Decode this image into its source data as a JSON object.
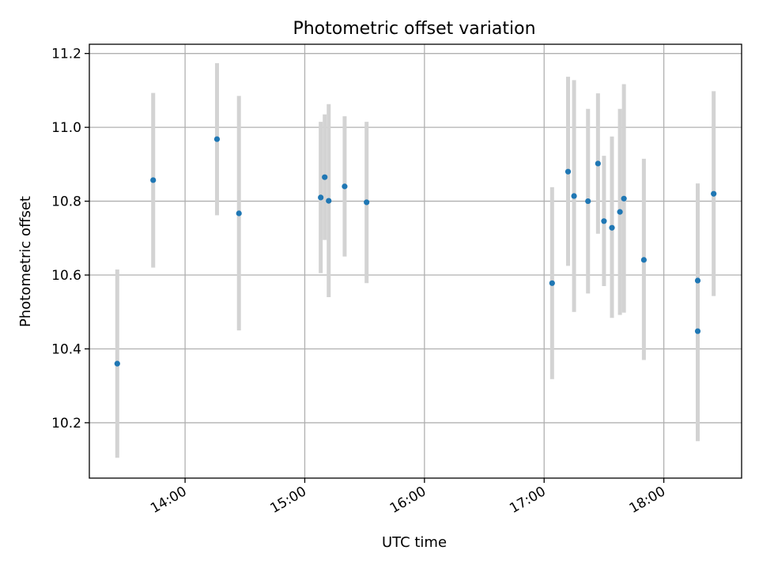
{
  "chart_data": {
    "type": "scatter",
    "title": "Photometric offset variation",
    "xlabel": "UTC time",
    "ylabel": "Photometric offset",
    "xlim": [
      "13:12",
      "18:39"
    ],
    "ylim": [
      10.05,
      11.225
    ],
    "x_ticks": [
      "14:00",
      "15:00",
      "16:00",
      "17:00",
      "18:00"
    ],
    "y_ticks": [
      10.2,
      10.4,
      10.6,
      10.8,
      11.0,
      11.2
    ],
    "y_tick_labels": [
      "10.2",
      "10.4",
      "10.6",
      "10.8",
      "11.0",
      "11.2"
    ],
    "grid": true,
    "colors": {
      "point": "#1f77b4",
      "errorbar": "#d3d3d3"
    },
    "series": [
      {
        "points": [
          {
            "x": "13:26",
            "y": 10.36,
            "ylow": 10.105,
            "yhigh": 10.615
          },
          {
            "x": "13:44",
            "y": 10.857,
            "ylow": 10.62,
            "yhigh": 11.093
          },
          {
            "x": "14:16",
            "y": 10.968,
            "ylow": 10.762,
            "yhigh": 11.174
          },
          {
            "x": "14:27",
            "y": 10.767,
            "ylow": 10.45,
            "yhigh": 11.085
          },
          {
            "x": "15:08",
            "y": 10.81,
            "ylow": 10.605,
            "yhigh": 11.015
          },
          {
            "x": "15:10",
            "y": 10.865,
            "ylow": 10.695,
            "yhigh": 11.035
          },
          {
            "x": "15:12",
            "y": 10.801,
            "ylow": 10.54,
            "yhigh": 11.063
          },
          {
            "x": "15:20",
            "y": 10.84,
            "ylow": 10.65,
            "yhigh": 11.03
          },
          {
            "x": "15:31",
            "y": 10.797,
            "ylow": 10.578,
            "yhigh": 11.015
          },
          {
            "x": "17:04",
            "y": 10.578,
            "ylow": 10.318,
            "yhigh": 10.838
          },
          {
            "x": "17:12",
            "y": 10.88,
            "ylow": 10.625,
            "yhigh": 11.137
          },
          {
            "x": "17:15",
            "y": 10.814,
            "ylow": 10.5,
            "yhigh": 11.128
          },
          {
            "x": "17:22",
            "y": 10.8,
            "ylow": 10.55,
            "yhigh": 11.05
          },
          {
            "x": "17:27",
            "y": 10.902,
            "ylow": 10.712,
            "yhigh": 11.092
          },
          {
            "x": "17:30",
            "y": 10.746,
            "ylow": 10.57,
            "yhigh": 10.923
          },
          {
            "x": "17:34",
            "y": 10.728,
            "ylow": 10.484,
            "yhigh": 10.975
          },
          {
            "x": "17:38",
            "y": 10.771,
            "ylow": 10.492,
            "yhigh": 11.05
          },
          {
            "x": "17:40",
            "y": 10.807,
            "ylow": 10.498,
            "yhigh": 11.117
          },
          {
            "x": "17:50",
            "y": 10.641,
            "ylow": 10.37,
            "yhigh": 10.915
          },
          {
            "x": "18:17",
            "y": 10.585,
            "ylow": 10.325,
            "yhigh": 10.848
          },
          {
            "x": "18:17",
            "y": 10.448,
            "ylow": 10.15,
            "yhigh": 10.745
          },
          {
            "x": "18:25",
            "y": 10.82,
            "ylow": 10.543,
            "yhigh": 11.098
          }
        ]
      }
    ]
  }
}
